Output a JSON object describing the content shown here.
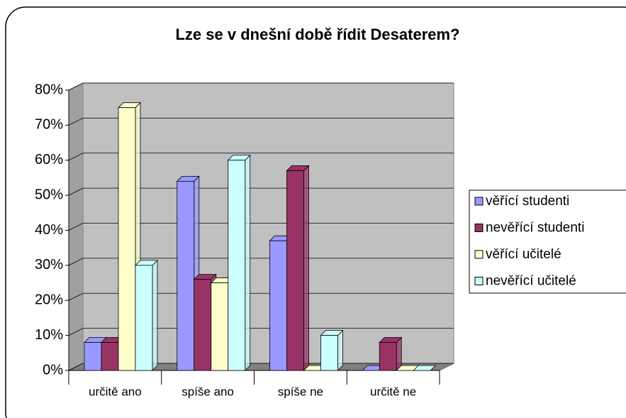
{
  "chart_data": {
    "type": "bar3d",
    "title": "Lze se v dnešní době řídit Desaterem?",
    "categories": [
      "určitě ano",
      "spíše ano",
      "spíše ne",
      "určitě ne"
    ],
    "series": [
      {
        "name": "věřící studenti",
        "color": "#9999ff",
        "values": [
          8,
          54,
          37,
          0
        ]
      },
      {
        "name": "nevěřící studenti",
        "color": "#993366",
        "values": [
          8,
          26,
          57,
          8
        ]
      },
      {
        "name": "věřící učitelé",
        "color": "#ffffcc",
        "values": [
          75,
          25,
          0,
          0
        ]
      },
      {
        "name": "nevěřící učitelé",
        "color": "#ccffff",
        "values": [
          30,
          60,
          10,
          0
        ]
      }
    ],
    "ylim": [
      0,
      80
    ],
    "yticks": [
      {
        "value": 0,
        "label": "0%"
      },
      {
        "value": 10,
        "label": "10%"
      },
      {
        "value": 20,
        "label": "20%"
      },
      {
        "value": 30,
        "label": "30%"
      },
      {
        "value": 40,
        "label": "40%"
      },
      {
        "value": 50,
        "label": "50%"
      },
      {
        "value": 60,
        "label": "60%"
      },
      {
        "value": 70,
        "label": "70%"
      },
      {
        "value": 80,
        "label": "80%"
      }
    ],
    "grid": true,
    "legend": "right"
  }
}
